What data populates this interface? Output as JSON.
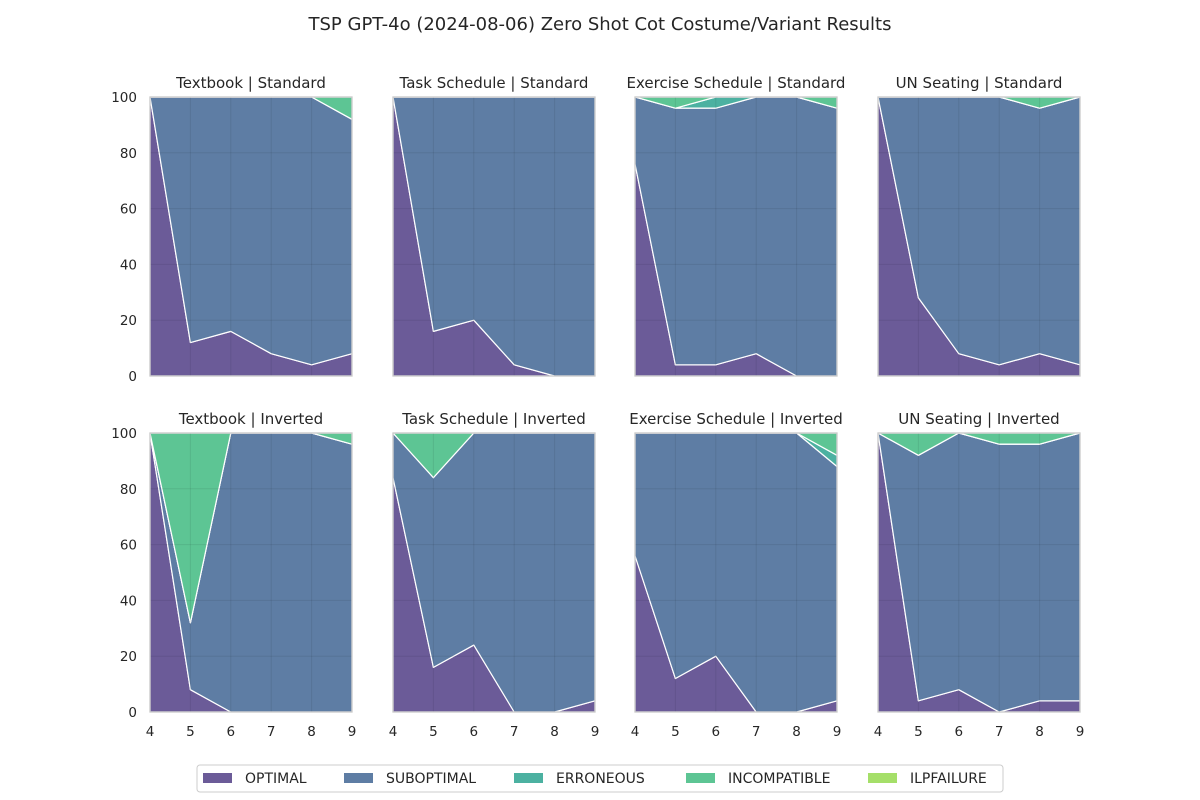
{
  "chart_data": {
    "type": "area",
    "stacked": true,
    "title": "TSP GPT-4o (2024-08-06) Zero Shot Cot Costume/Variant Results",
    "x": [
      4,
      5,
      6,
      7,
      8,
      9
    ],
    "ylim": [
      0,
      100
    ],
    "yticks": [
      0,
      20,
      40,
      60,
      80,
      100
    ],
    "grid": true,
    "legend_position": "bottom-center",
    "series_names": [
      "OPTIMAL",
      "SUBOPTIMAL",
      "ERRONEOUS",
      "INCOMPATIBLE",
      "ILPFAILURE"
    ],
    "colors": {
      "OPTIMAL": "#46327e",
      "SUBOPTIMAL": "#365c8d",
      "ERRONEOUS": "#1f9e89",
      "INCOMPATIBLE": "#35b779",
      "ILPFAILURE": "#8fd744"
    },
    "subplots": [
      {
        "title": "Textbook | Standard",
        "OPTIMAL": [
          100,
          12,
          16,
          8,
          4,
          8
        ],
        "SUBOPTIMAL": [
          0,
          88,
          84,
          92,
          96,
          84
        ],
        "ERRONEOUS": [
          0,
          0,
          0,
          0,
          0,
          0
        ],
        "INCOMPATIBLE": [
          0,
          0,
          0,
          0,
          0,
          8
        ],
        "ILPFAILURE": [
          0,
          0,
          0,
          0,
          0,
          0
        ]
      },
      {
        "title": "Task Schedule | Standard",
        "OPTIMAL": [
          100,
          16,
          20,
          4,
          0,
          0
        ],
        "SUBOPTIMAL": [
          0,
          84,
          80,
          96,
          100,
          100
        ],
        "ERRONEOUS": [
          0,
          0,
          0,
          0,
          0,
          0
        ],
        "INCOMPATIBLE": [
          0,
          0,
          0,
          0,
          0,
          0
        ],
        "ILPFAILURE": [
          0,
          0,
          0,
          0,
          0,
          0
        ]
      },
      {
        "title": "Exercise Schedule | Standard",
        "OPTIMAL": [
          76,
          4,
          4,
          8,
          0,
          0
        ],
        "SUBOPTIMAL": [
          24,
          92,
          92,
          92,
          100,
          96
        ],
        "ERRONEOUS": [
          0,
          0,
          4,
          0,
          0,
          0
        ],
        "INCOMPATIBLE": [
          0,
          4,
          0,
          0,
          0,
          4
        ],
        "ILPFAILURE": [
          0,
          0,
          0,
          0,
          0,
          0
        ]
      },
      {
        "title": "UN Seating | Standard",
        "OPTIMAL": [
          100,
          28,
          8,
          4,
          8,
          4
        ],
        "SUBOPTIMAL": [
          0,
          72,
          92,
          96,
          88,
          96
        ],
        "ERRONEOUS": [
          0,
          0,
          0,
          0,
          0,
          0
        ],
        "INCOMPATIBLE": [
          0,
          0,
          0,
          0,
          4,
          0
        ],
        "ILPFAILURE": [
          0,
          0,
          0,
          0,
          0,
          0
        ]
      },
      {
        "title": "Textbook | Inverted",
        "OPTIMAL": [
          100,
          8,
          0,
          0,
          0,
          0
        ],
        "SUBOPTIMAL": [
          0,
          24,
          100,
          100,
          100,
          96
        ],
        "ERRONEOUS": [
          0,
          0,
          0,
          0,
          0,
          0
        ],
        "INCOMPATIBLE": [
          0,
          68,
          0,
          0,
          0,
          4
        ],
        "ILPFAILURE": [
          0,
          0,
          0,
          0,
          0,
          0
        ]
      },
      {
        "title": "Task Schedule | Inverted",
        "OPTIMAL": [
          84,
          16,
          24,
          0,
          0,
          4
        ],
        "SUBOPTIMAL": [
          16,
          68,
          76,
          100,
          100,
          96
        ],
        "ERRONEOUS": [
          0,
          0,
          0,
          0,
          0,
          0
        ],
        "INCOMPATIBLE": [
          0,
          16,
          0,
          0,
          0,
          0
        ],
        "ILPFAILURE": [
          0,
          0,
          0,
          0,
          0,
          0
        ]
      },
      {
        "title": "Exercise Schedule | Inverted",
        "OPTIMAL": [
          56,
          12,
          20,
          0,
          0,
          4
        ],
        "SUBOPTIMAL": [
          44,
          88,
          80,
          100,
          100,
          84
        ],
        "ERRONEOUS": [
          0,
          0,
          0,
          0,
          0,
          4
        ],
        "INCOMPATIBLE": [
          0,
          0,
          0,
          0,
          0,
          8
        ],
        "ILPFAILURE": [
          0,
          0,
          0,
          0,
          0,
          0
        ]
      },
      {
        "title": "UN Seating | Inverted",
        "OPTIMAL": [
          100,
          4,
          8,
          0,
          4,
          4
        ],
        "SUBOPTIMAL": [
          0,
          88,
          92,
          96,
          92,
          96
        ],
        "ERRONEOUS": [
          0,
          0,
          0,
          0,
          0,
          0
        ],
        "INCOMPATIBLE": [
          0,
          8,
          0,
          4,
          4,
          0
        ],
        "ILPFAILURE": [
          0,
          0,
          0,
          0,
          0,
          0
        ]
      }
    ]
  }
}
